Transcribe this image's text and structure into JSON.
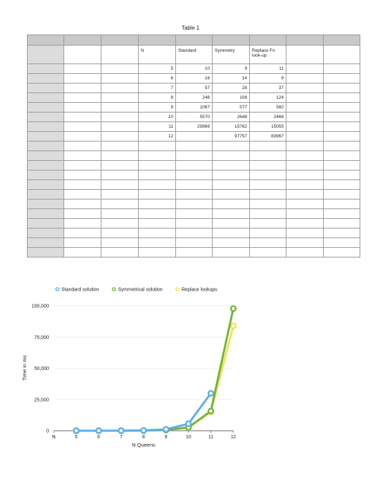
{
  "table": {
    "title": "Table 1",
    "headers": [
      "",
      "",
      "",
      "N",
      "Standard",
      "Symmetry",
      "Replace Fn look-up",
      "",
      ""
    ],
    "rows": [
      [
        "5",
        "10",
        "9",
        "11"
      ],
      [
        "6",
        "16",
        "14",
        "9"
      ],
      [
        "7",
        "57",
        "28",
        "37"
      ],
      [
        "8",
        "248",
        "108",
        "124"
      ],
      [
        "9",
        "1067",
        "577",
        "582"
      ],
      [
        "10",
        "5570",
        "2648",
        "2466"
      ],
      [
        "11",
        "29969",
        "15762",
        "15055"
      ],
      [
        "12",
        "",
        "97757",
        "83967"
      ]
    ],
    "empty_rows": 12
  },
  "chart_data": {
    "type": "line",
    "legend": [
      "Standard solution",
      "Symmetrical solution",
      "Replace lookups"
    ],
    "legend_placement": "top",
    "xlabel": "N Queens",
    "ylabel": "Time in ms",
    "x": [
      "N",
      "5",
      "6",
      "7",
      "8",
      "9",
      "10",
      "11",
      "12"
    ],
    "yticks": [
      "0",
      "25,000",
      "50,000",
      "75,000",
      "100,000"
    ],
    "ylim": [
      0,
      100000
    ],
    "grid": true,
    "series": [
      {
        "name": "Standard solution",
        "color": "#5aaee8",
        "values": [
          null,
          10,
          16,
          57,
          248,
          1067,
          5570,
          29969,
          null
        ]
      },
      {
        "name": "Symmetrical solution",
        "color": "#6fb63a",
        "values": [
          null,
          9,
          14,
          28,
          108,
          577,
          2648,
          15762,
          97757
        ]
      },
      {
        "name": "Replace lookups",
        "color": "#f3e34a",
        "values": [
          null,
          11,
          9,
          37,
          124,
          582,
          2466,
          15055,
          83967
        ]
      }
    ]
  }
}
